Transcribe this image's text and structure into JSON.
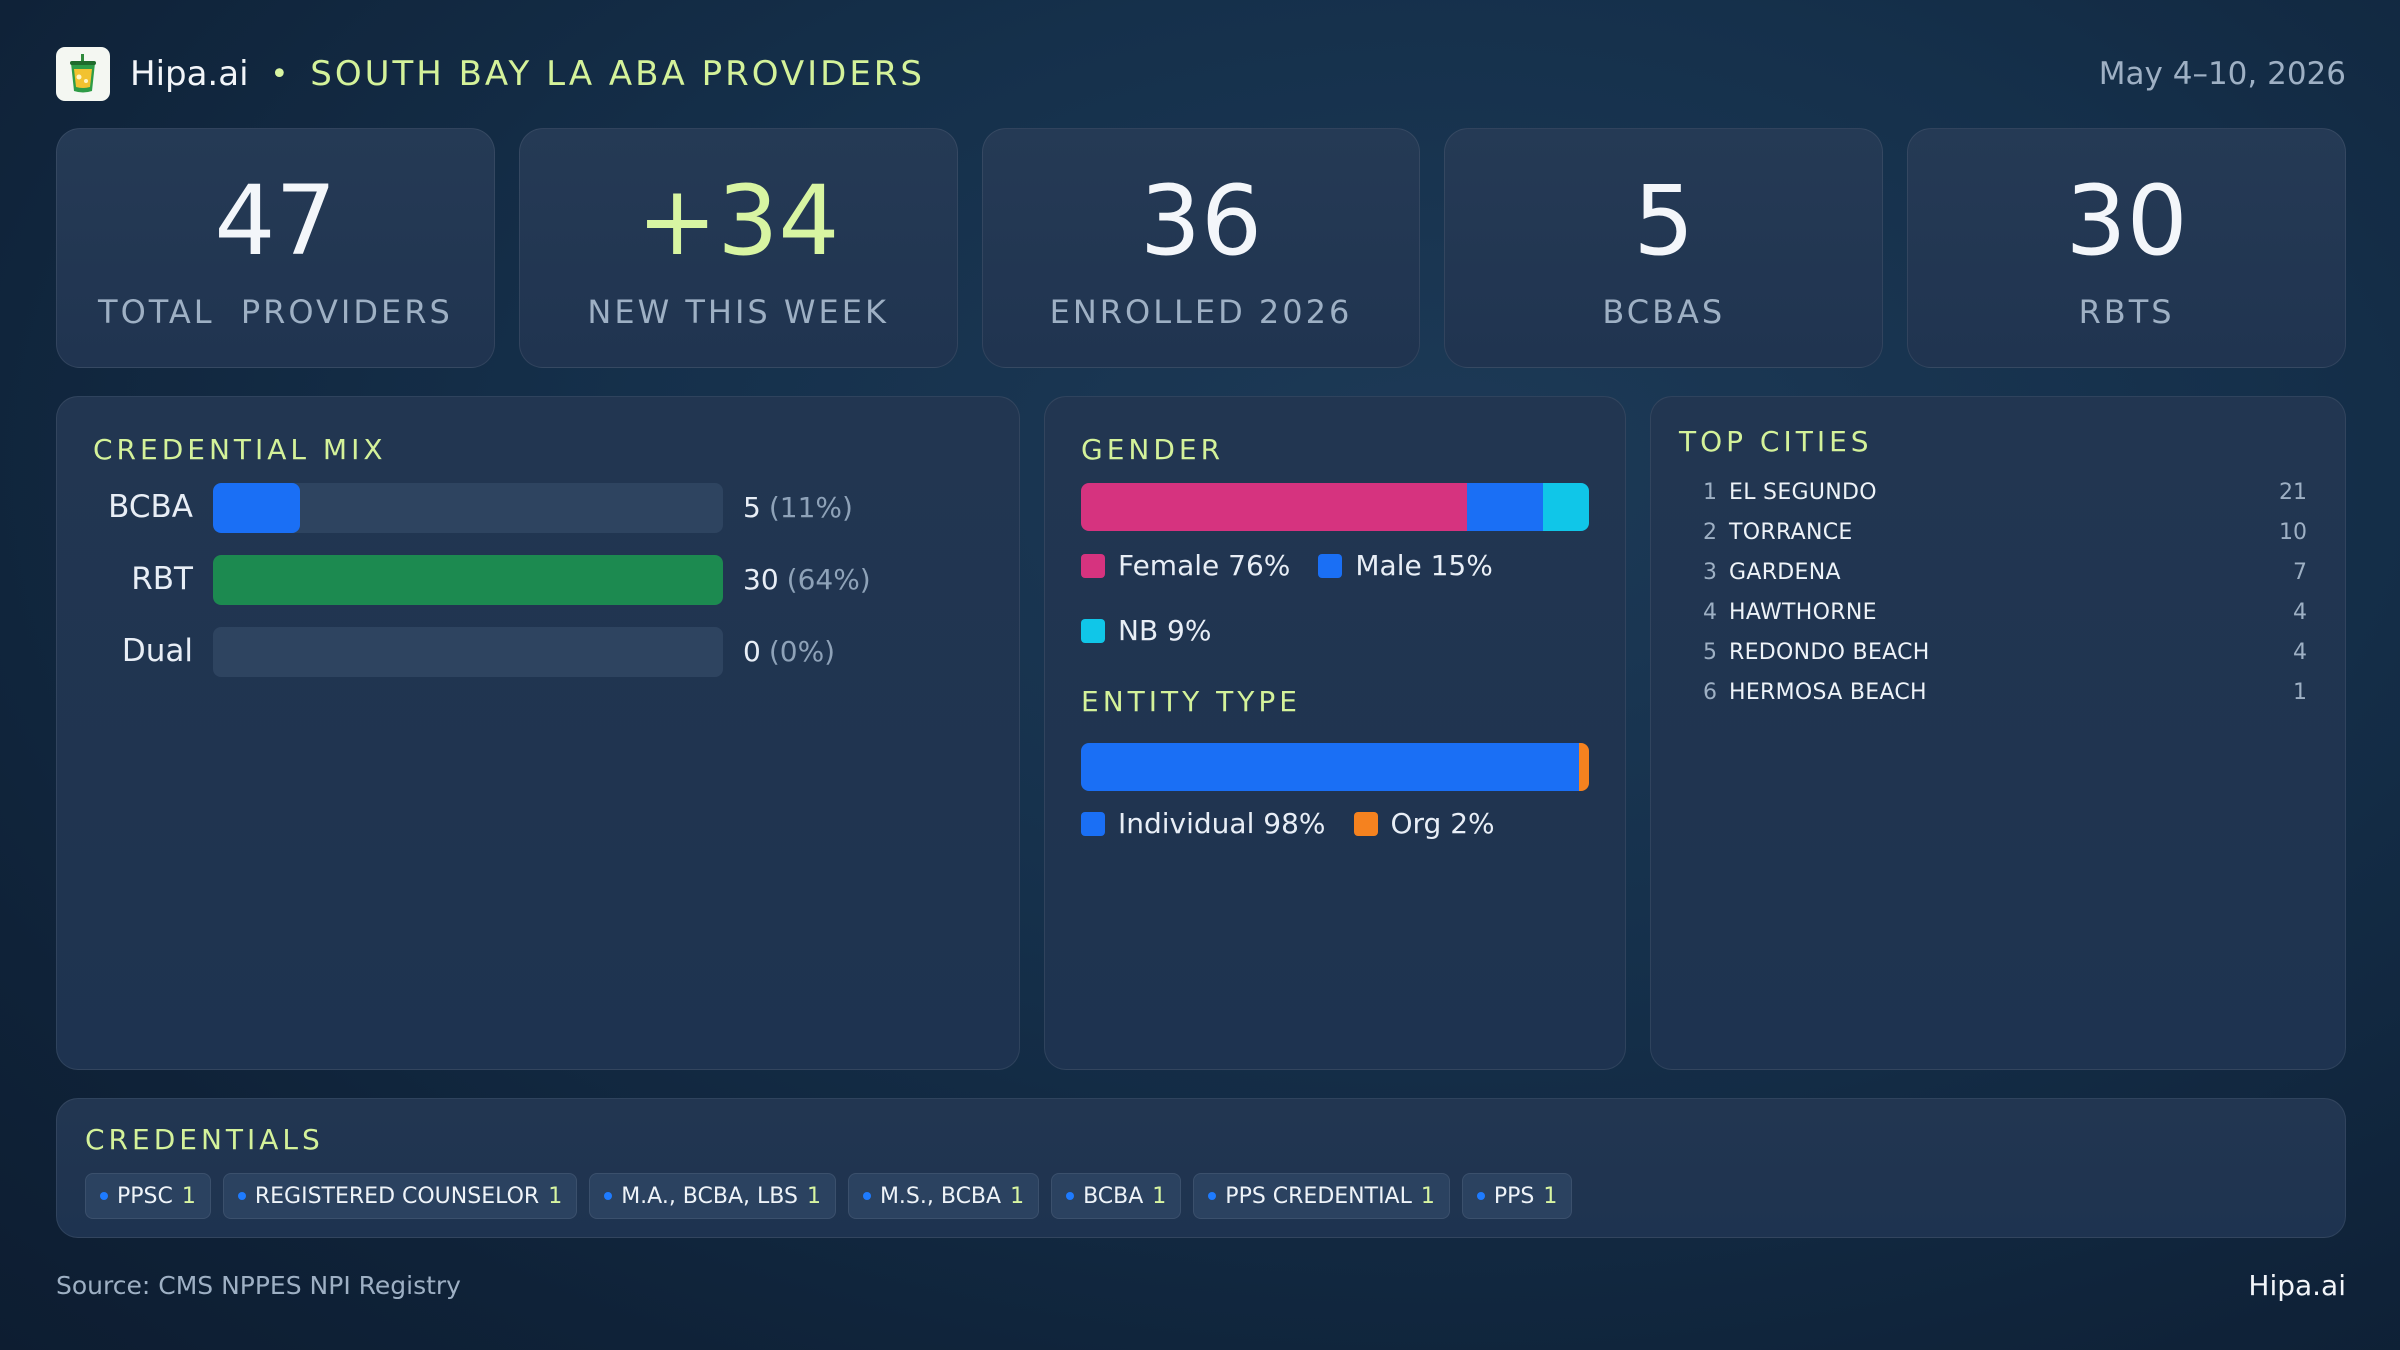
{
  "header": {
    "brand": "Hipa.ai",
    "separator": "•",
    "title": "SOUTH BAY LA ABA PROVIDERS",
    "date_range": "May 4–10, 2026"
  },
  "kpis": [
    {
      "value": "47",
      "label": "TOTAL  PROVIDERS"
    },
    {
      "value": "+34",
      "label": "NEW THIS WEEK"
    },
    {
      "value": "36",
      "label": "ENROLLED 2026"
    },
    {
      "value": "5",
      "label": "BCBAS"
    },
    {
      "value": "30",
      "label": "RBTS"
    }
  ],
  "credential_mix": {
    "title": "CREDENTIAL MIX",
    "rows": [
      {
        "label": "BCBA",
        "count": "5",
        "pct": "(11%)",
        "fraction": 0.17,
        "color": "#1a6ff5"
      },
      {
        "label": "RBT",
        "count": "30",
        "pct": "(64%)",
        "fraction": 1.0,
        "color": "#1c8a50"
      },
      {
        "label": "Dual",
        "count": "0",
        "pct": "(0%)",
        "fraction": 0.0,
        "color": "#1a6ff5"
      }
    ]
  },
  "gender": {
    "title": "GENDER",
    "segments": [
      {
        "label": "Female 76%",
        "share": 76,
        "color": "#d6337f"
      },
      {
        "label": "Male 15%",
        "share": 15,
        "color": "#1a6ff5"
      },
      {
        "label": "NB 9%",
        "share": 9,
        "color": "#10c6e8"
      }
    ]
  },
  "entity_type": {
    "title": "ENTITY TYPE",
    "segments": [
      {
        "label": "Individual 98%",
        "share": 98,
        "color": "#1a6ff5"
      },
      {
        "label": "Org 2%",
        "share": 2,
        "color": "#f5821f"
      }
    ]
  },
  "top_cities": {
    "title": "TOP CITIES",
    "items": [
      {
        "rank": "1",
        "name": "EL SEGUNDO",
        "count": "21"
      },
      {
        "rank": "2",
        "name": "TORRANCE",
        "count": "10"
      },
      {
        "rank": "3",
        "name": "GARDENA",
        "count": "7"
      },
      {
        "rank": "4",
        "name": "HAWTHORNE",
        "count": "4"
      },
      {
        "rank": "5",
        "name": "REDONDO BEACH",
        "count": "4"
      },
      {
        "rank": "6",
        "name": "HERMOSA BEACH",
        "count": "1"
      }
    ]
  },
  "credentials": {
    "title": "CREDENTIALS",
    "chips": [
      {
        "label": "PPSC",
        "count": "1"
      },
      {
        "label": "REGISTERED COUNSELOR",
        "count": "1"
      },
      {
        "label": "M.A., BCBA, LBS",
        "count": "1"
      },
      {
        "label": "M.S., BCBA",
        "count": "1"
      },
      {
        "label": "BCBA",
        "count": "1"
      },
      {
        "label": "PPS CREDENTIAL",
        "count": "1"
      },
      {
        "label": "PPS",
        "count": "1"
      }
    ]
  },
  "footer": {
    "source": "Source: CMS NPPES NPI Registry",
    "brand": "Hipa.ai"
  }
}
